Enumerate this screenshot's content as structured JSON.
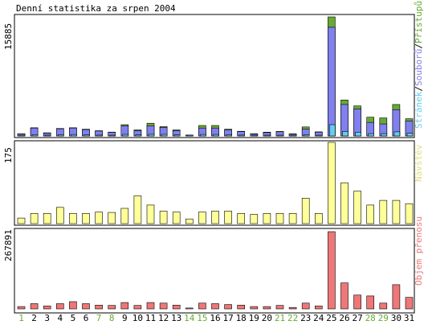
{
  "chart_data": [
    {
      "type": "bar",
      "title": "Denní statistika za srpen 2004",
      "panel": "hits",
      "ymax_label": "15885",
      "legend_label_parts": [
        "Stránek",
        "/",
        "Souborů",
        "/",
        "Přístupů"
      ],
      "categories": [
        "1",
        "2",
        "3",
        "4",
        "5",
        "6",
        "7",
        "8",
        "9",
        "10",
        "11",
        "12",
        "13",
        "14",
        "15",
        "16",
        "17",
        "18",
        "19",
        "20",
        "21",
        "22",
        "23",
        "24",
        "25",
        "26",
        "27",
        "28",
        "29",
        "30",
        "31"
      ],
      "weekend_days": [
        1,
        7,
        8,
        14,
        15,
        21,
        22,
        28,
        29
      ],
      "ylim": [
        0,
        15885
      ],
      "series": [
        {
          "name": "Přístupů",
          "values": [
            300,
            1100,
            420,
            1000,
            1100,
            900,
            700,
            520,
            1500,
            800,
            1700,
            1250,
            800,
            90,
            1400,
            1400,
            900,
            620,
            300,
            500,
            600,
            280,
            1200,
            550,
            15885,
            4800,
            4000,
            2500,
            2400,
            4200,
            2300
          ]
        },
        {
          "name": "Souborů",
          "values": [
            280,
            1050,
            380,
            950,
            1050,
            850,
            650,
            480,
            1350,
            700,
            1350,
            1150,
            700,
            80,
            1050,
            1050,
            800,
            580,
            270,
            450,
            560,
            250,
            900,
            500,
            14500,
            4200,
            3600,
            1800,
            1600,
            3500,
            2000
          ]
        },
        {
          "name": "Stránek",
          "values": [
            60,
            170,
            80,
            160,
            190,
            150,
            120,
            100,
            220,
            150,
            230,
            210,
            150,
            20,
            200,
            200,
            160,
            120,
            60,
            90,
            110,
            60,
            180,
            100,
            1500,
            600,
            500,
            300,
            300,
            550,
            350
          ]
        }
      ],
      "colors": {
        "Přístupů": "#66aa33",
        "Souborů": "#8080ee",
        "Stránek": "#66ccee"
      }
    },
    {
      "type": "bar",
      "panel": "visits",
      "ymax_label": "175",
      "legend_label": "Návštěv",
      "ylim": [
        0,
        175
      ],
      "series": [
        {
          "name": "Návštěv",
          "values": [
            12,
            22,
            22,
            35,
            22,
            22,
            25,
            24,
            33,
            60,
            40,
            27,
            25,
            10,
            25,
            27,
            27,
            22,
            20,
            22,
            22,
            22,
            55,
            22,
            175,
            88,
            70,
            40,
            50,
            50,
            43
          ]
        }
      ],
      "colors": {
        "Návštěv": "#ffff99"
      }
    },
    {
      "type": "bar",
      "panel": "transfer",
      "ymax_label": "267891",
      "legend_label": "Objem přenosu",
      "ylim": [
        0,
        267891
      ],
      "series": [
        {
          "name": "Objem přenosu",
          "values": [
            8000,
            18000,
            10000,
            18000,
            25000,
            18000,
            13000,
            12000,
            22000,
            12000,
            22000,
            20000,
            13000,
            3000,
            20000,
            18000,
            15000,
            13000,
            8000,
            8000,
            12000,
            5000,
            20000,
            10000,
            267891,
            90000,
            48000,
            45000,
            20000,
            84000,
            40000
          ]
        }
      ],
      "colors": {
        "Objem přenosu": "#ee7777"
      }
    }
  ]
}
